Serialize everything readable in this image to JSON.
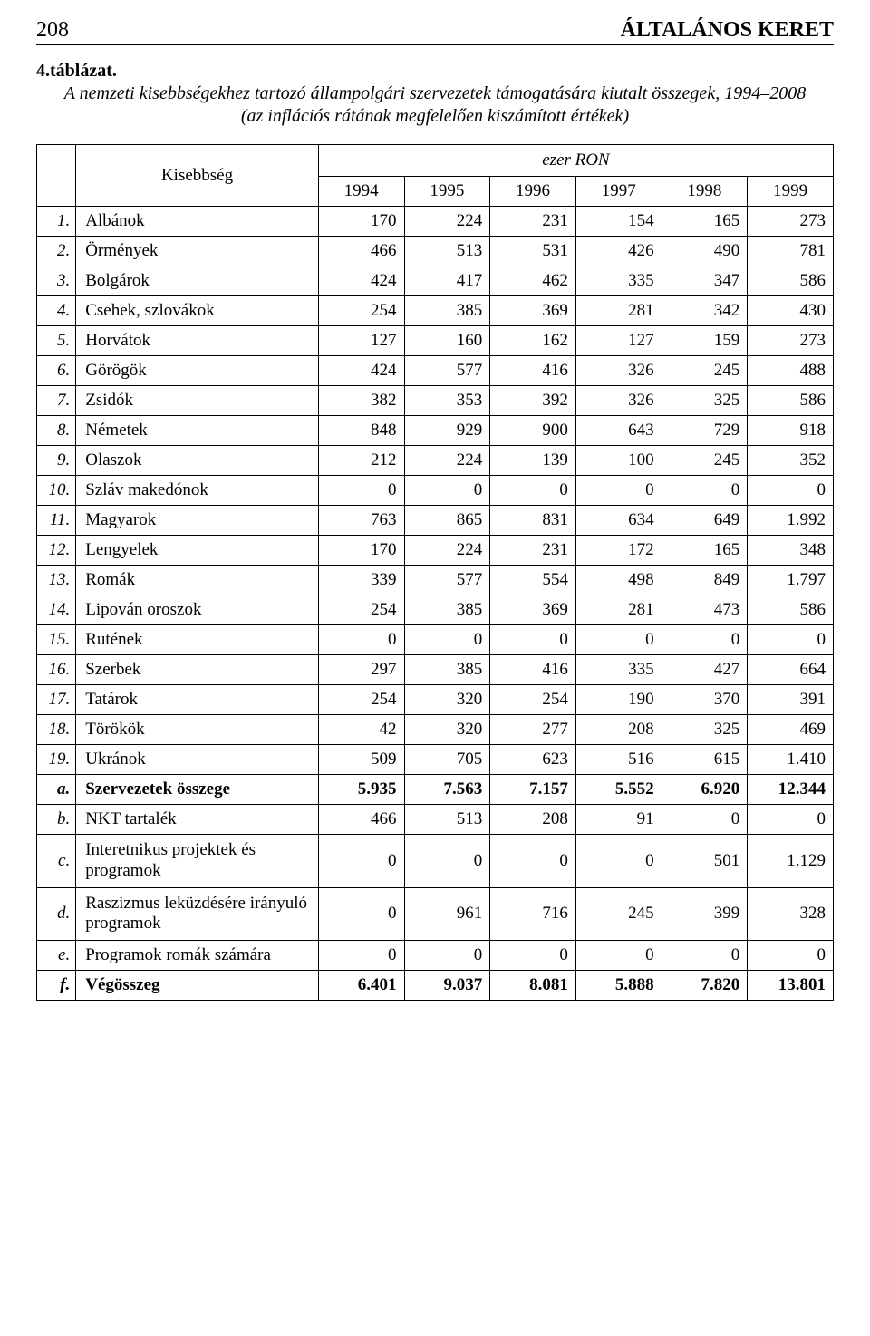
{
  "page_number": "208",
  "section_title": "ÁLTALÁNOS KERET",
  "table_label": "4.táblázat.",
  "caption": "A nemzeti kisebbségekhez tartozó állampolgári szervezetek támogatására kiutalt összegek, 1994–2008 (az inflációs rátának megfelelően kiszámított értékek)",
  "row_header": "Kisebbség",
  "unit_label": "ezer RON",
  "years": [
    "1994",
    "1995",
    "1996",
    "1997",
    "1998",
    "1999"
  ],
  "rows": [
    {
      "idx": "1.",
      "name": "Albánok",
      "vals": [
        "170",
        "224",
        "231",
        "154",
        "165",
        "273"
      ]
    },
    {
      "idx": "2.",
      "name": "Örmények",
      "vals": [
        "466",
        "513",
        "531",
        "426",
        "490",
        "781"
      ]
    },
    {
      "idx": "3.",
      "name": "Bolgárok",
      "vals": [
        "424",
        "417",
        "462",
        "335",
        "347",
        "586"
      ]
    },
    {
      "idx": "4.",
      "name": "Csehek, szlovákok",
      "vals": [
        "254",
        "385",
        "369",
        "281",
        "342",
        "430"
      ]
    },
    {
      "idx": "5.",
      "name": "Horvátok",
      "vals": [
        "127",
        "160",
        "162",
        "127",
        "159",
        "273"
      ]
    },
    {
      "idx": "6.",
      "name": "Görögök",
      "vals": [
        "424",
        "577",
        "416",
        "326",
        "245",
        "488"
      ]
    },
    {
      "idx": "7.",
      "name": "Zsidók",
      "vals": [
        "382",
        "353",
        "392",
        "326",
        "325",
        "586"
      ]
    },
    {
      "idx": "8.",
      "name": "Németek",
      "vals": [
        "848",
        "929",
        "900",
        "643",
        "729",
        "918"
      ]
    },
    {
      "idx": "9.",
      "name": "Olaszok",
      "vals": [
        "212",
        "224",
        "139",
        "100",
        "245",
        "352"
      ]
    },
    {
      "idx": "10.",
      "name": "Szláv makedónok",
      "vals": [
        "0",
        "0",
        "0",
        "0",
        "0",
        "0"
      ]
    },
    {
      "idx": "11.",
      "name": "Magyarok",
      "vals": [
        "763",
        "865",
        "831",
        "634",
        "649",
        "1.992"
      ]
    },
    {
      "idx": "12.",
      "name": "Lengyelek",
      "vals": [
        "170",
        "224",
        "231",
        "172",
        "165",
        "348"
      ]
    },
    {
      "idx": "13.",
      "name": "Romák",
      "vals": [
        "339",
        "577",
        "554",
        "498",
        "849",
        "1.797"
      ]
    },
    {
      "idx": "14.",
      "name": "Lipován oroszok",
      "vals": [
        "254",
        "385",
        "369",
        "281",
        "473",
        "586"
      ]
    },
    {
      "idx": "15.",
      "name": "Rutének",
      "vals": [
        "0",
        "0",
        "0",
        "0",
        "0",
        "0"
      ]
    },
    {
      "idx": "16.",
      "name": "Szerbek",
      "vals": [
        "297",
        "385",
        "416",
        "335",
        "427",
        "664"
      ]
    },
    {
      "idx": "17.",
      "name": "Tatárok",
      "vals": [
        "254",
        "320",
        "254",
        "190",
        "370",
        "391"
      ]
    },
    {
      "idx": "18.",
      "name": "Törökök",
      "vals": [
        "42",
        "320",
        "277",
        "208",
        "325",
        "469"
      ]
    },
    {
      "idx": "19.",
      "name": "Ukránok",
      "vals": [
        "509",
        "705",
        "623",
        "516",
        "615",
        "1.410"
      ]
    },
    {
      "idx": "a.",
      "name": "Szervezetek összege",
      "vals": [
        "5.935",
        "7.563",
        "7.157",
        "5.552",
        "6.920",
        "12.344"
      ],
      "bold": true
    },
    {
      "idx": "b.",
      "name": "NKT tartalék",
      "vals": [
        "466",
        "513",
        "208",
        "91",
        "0",
        "0"
      ]
    },
    {
      "idx": "c.",
      "name": "Interetnikus projektek és programok",
      "vals": [
        "0",
        "0",
        "0",
        "0",
        "501",
        "1.129"
      ],
      "multiline": true
    },
    {
      "idx": "d.",
      "name": "Raszizmus leküzdésére irányuló programok",
      "vals": [
        "0",
        "961",
        "716",
        "245",
        "399",
        "328"
      ],
      "multiline": true
    },
    {
      "idx": "e.",
      "name": "Programok romák számára",
      "vals": [
        "0",
        "0",
        "0",
        "0",
        "0",
        "0"
      ]
    },
    {
      "idx": "f.",
      "name": "Végösszeg",
      "vals": [
        "6.401",
        "9.037",
        "8.081",
        "5.888",
        "7.820",
        "13.801"
      ],
      "bold": true
    }
  ]
}
